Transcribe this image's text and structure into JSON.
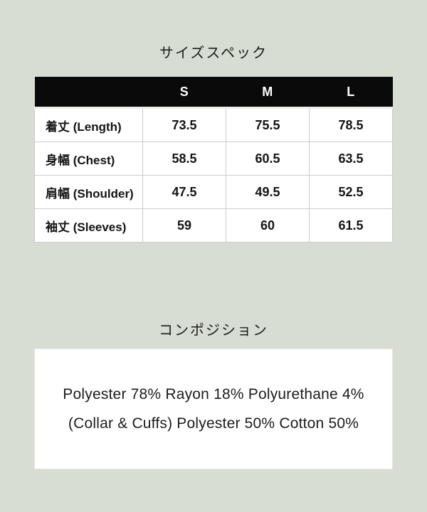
{
  "page": {
    "background_color": "#d8ddd3"
  },
  "size_spec": {
    "title": "サイズスペック",
    "table": {
      "header_bg": "#0a0a0a",
      "header_text_color": "#ffffff",
      "columns": [
        "S",
        "M",
        "L"
      ],
      "rows": [
        {
          "label": "着丈 (Length)",
          "values": [
            "73.5",
            "75.5",
            "78.5"
          ]
        },
        {
          "label": "身幅 (Chest)",
          "values": [
            "58.5",
            "60.5",
            "63.5"
          ]
        },
        {
          "label": "肩幅 (Shoulder)",
          "values": [
            "47.5",
            "49.5",
            "52.5"
          ]
        },
        {
          "label": "袖丈 (Sleeves)",
          "values": [
            "59",
            "60",
            "61.5"
          ]
        }
      ]
    }
  },
  "composition": {
    "title": "コンポジション",
    "lines": [
      "Polyester 78% Rayon 18% Polyurethane 4%",
      "(Collar & Cuffs) Polyester 50% Cotton 50%"
    ]
  }
}
